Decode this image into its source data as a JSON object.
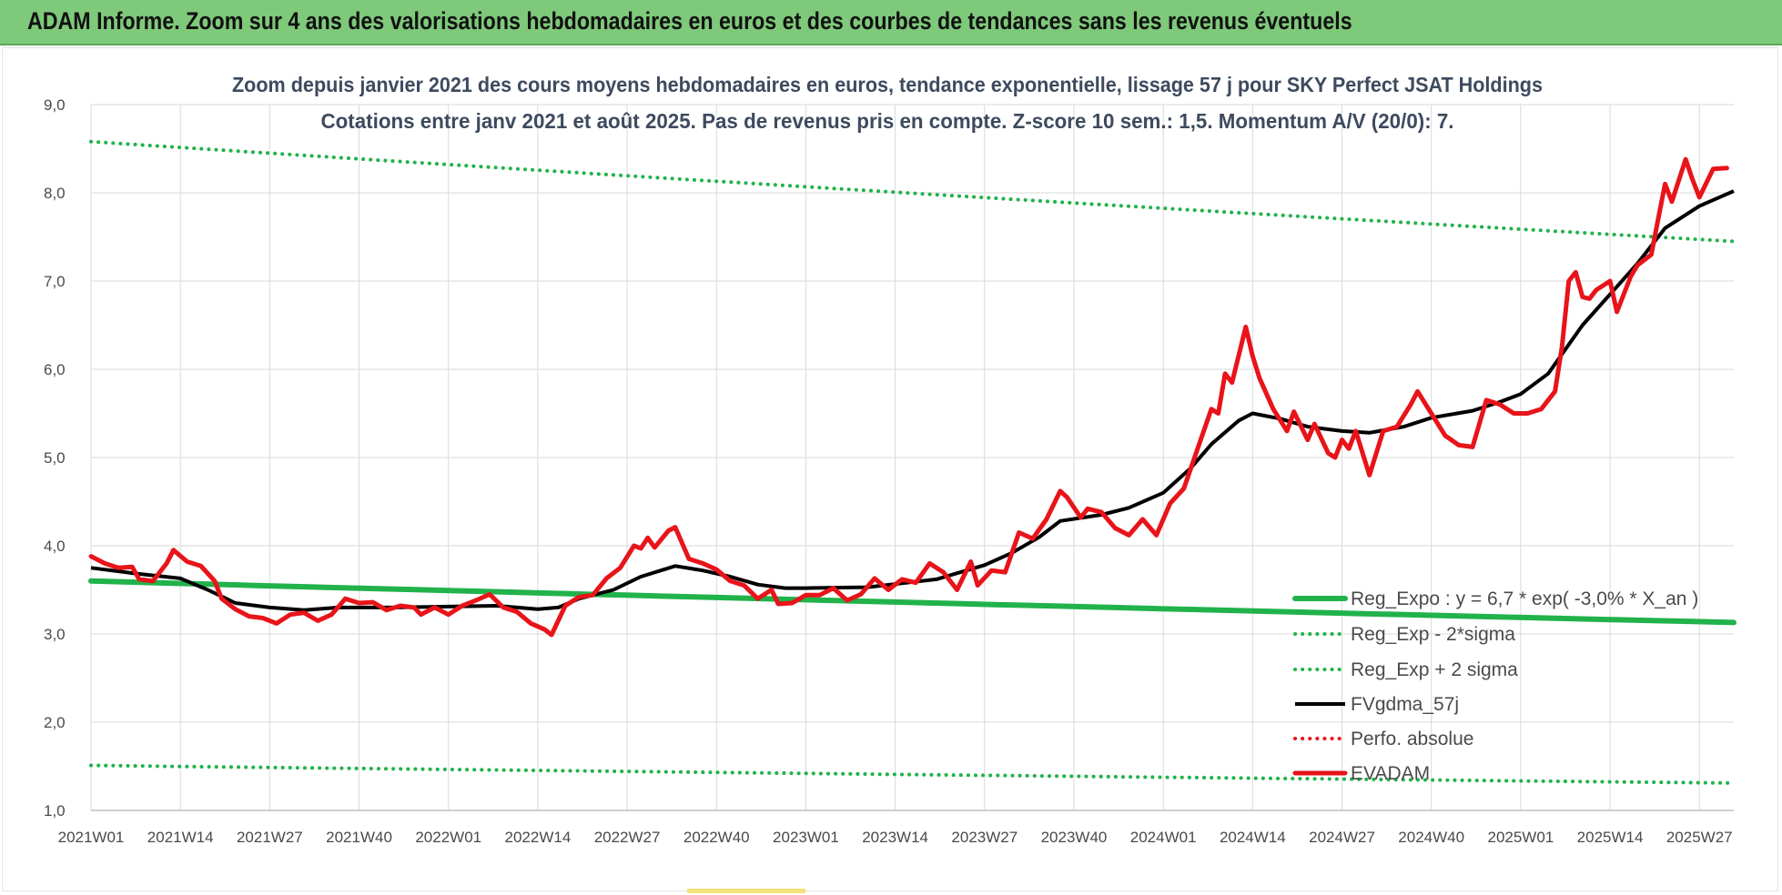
{
  "header": {
    "title": "ADAM Informe. Zoom sur 4 ans des valorisations hebdomadaires en euros et des courbes de tendances sans les revenus éventuels",
    "background": "#7ec97a"
  },
  "chart_data": {
    "type": "line",
    "title_line1": "Zoom depuis janvier 2021 des cours moyens hebdomadaires en euros, tendance exponentielle, lissage 57 j pour SKY Perfect JSAT Holdings",
    "title_line2": "Cotations entre janv 2021 et août 2025.  Pas de revenus pris en compte. Z-score 10 sem.: 1,5. Momentum A/V (20/0): 7.",
    "ylim": [
      1.0,
      9.0
    ],
    "y_ticks": [
      "1,0",
      "2,0",
      "3,0",
      "4,0",
      "5,0",
      "6,0",
      "7,0",
      "8,0",
      "9,0"
    ],
    "x_ticks": [
      "2021W01",
      "2021W14",
      "2021W27",
      "2021W40",
      "2022W01",
      "2022W14",
      "2022W27",
      "2022W40",
      "2023W01",
      "2023W14",
      "2023W27",
      "2023W40",
      "2024W01",
      "2024W14",
      "2024W27",
      "2024W40",
      "2025W01",
      "2025W14",
      "2025W27"
    ],
    "grid": true,
    "legend_position": "bottom-right",
    "series": [
      {
        "name": "Reg_Expo : y = 6,7 * exp( -3,0% *  X_an )",
        "color": "#21b24b",
        "style": "solid-thick",
        "points": [
          [
            "2021W01",
            3.6
          ],
          [
            "2025W32",
            3.13
          ]
        ]
      },
      {
        "name": "Reg_Exp - 2*sigma",
        "color": "#21b24b",
        "style": "dotted",
        "points": [
          [
            "2021W01",
            1.51
          ],
          [
            "2025W32",
            1.31
          ]
        ]
      },
      {
        "name": "Reg_Exp + 2 sigma",
        "color": "#21b24b",
        "style": "dotted",
        "points": [
          [
            "2021W01",
            8.58
          ],
          [
            "2025W32",
            7.45
          ]
        ]
      },
      {
        "name": "FVgdma_57j",
        "color": "#000000",
        "style": "solid",
        "points": [
          [
            "2021W01",
            3.75
          ],
          [
            "2021W08",
            3.68
          ],
          [
            "2021W14",
            3.63
          ],
          [
            "2021W18",
            3.5
          ],
          [
            "2021W22",
            3.35
          ],
          [
            "2021W27",
            3.3
          ],
          [
            "2021W32",
            3.27
          ],
          [
            "2021W37",
            3.3
          ],
          [
            "2021W45",
            3.3
          ],
          [
            "2022W01",
            3.31
          ],
          [
            "2022W08",
            3.32
          ],
          [
            "2022W14",
            3.28
          ],
          [
            "2022W17",
            3.3
          ],
          [
            "2022W20",
            3.4
          ],
          [
            "2022W25",
            3.5
          ],
          [
            "2022W29",
            3.65
          ],
          [
            "2022W34",
            3.77
          ],
          [
            "2022W38",
            3.72
          ],
          [
            "2022W42",
            3.65
          ],
          [
            "2022W46",
            3.56
          ],
          [
            "2022W50",
            3.52
          ],
          [
            "2023W01",
            3.52
          ],
          [
            "2023W10",
            3.53
          ],
          [
            "2023W20",
            3.62
          ],
          [
            "2023W27",
            3.78
          ],
          [
            "2023W31",
            3.92
          ],
          [
            "2023W35",
            4.1
          ],
          [
            "2023W38",
            4.28
          ],
          [
            "2023W44",
            4.35
          ],
          [
            "2023W48",
            4.43
          ],
          [
            "2024W01",
            4.6
          ],
          [
            "2024W05",
            4.88
          ],
          [
            "2024W08",
            5.15
          ],
          [
            "2024W12",
            5.42
          ],
          [
            "2024W14",
            5.5
          ],
          [
            "2024W18",
            5.44
          ],
          [
            "2024W22",
            5.35
          ],
          [
            "2024W27",
            5.3
          ],
          [
            "2024W31",
            5.28
          ],
          [
            "2024W36",
            5.35
          ],
          [
            "2024W40",
            5.45
          ],
          [
            "2024W46",
            5.53
          ],
          [
            "2024W50",
            5.63
          ],
          [
            "2025W01",
            5.72
          ],
          [
            "2025W05",
            5.95
          ],
          [
            "2025W10",
            6.5
          ],
          [
            "2025W14",
            6.85
          ],
          [
            "2025W18",
            7.2
          ],
          [
            "2025W22",
            7.6
          ],
          [
            "2025W27",
            7.85
          ],
          [
            "2025W32",
            8.02
          ]
        ]
      },
      {
        "name": "Perfo. absolue",
        "color": "#e8141a",
        "style": "dotted",
        "points": []
      },
      {
        "name": "EVADAM",
        "color": "#e8141a",
        "style": "solid-thick",
        "points": [
          [
            "2021W01",
            3.88
          ],
          [
            "2021W03",
            3.8
          ],
          [
            "2021W05",
            3.75
          ],
          [
            "2021W07",
            3.76
          ],
          [
            "2021W08",
            3.62
          ],
          [
            "2021W10",
            3.6
          ],
          [
            "2021W12",
            3.8
          ],
          [
            "2021W13",
            3.95
          ],
          [
            "2021W15",
            3.82
          ],
          [
            "2021W17",
            3.77
          ],
          [
            "2021W19",
            3.6
          ],
          [
            "2021W20",
            3.4
          ],
          [
            "2021W22",
            3.28
          ],
          [
            "2021W24",
            3.2
          ],
          [
            "2021W26",
            3.18
          ],
          [
            "2021W28",
            3.12
          ],
          [
            "2021W30",
            3.22
          ],
          [
            "2021W32",
            3.24
          ],
          [
            "2021W34",
            3.15
          ],
          [
            "2021W36",
            3.22
          ],
          [
            "2021W38",
            3.4
          ],
          [
            "2021W40",
            3.35
          ],
          [
            "2021W42",
            3.36
          ],
          [
            "2021W44",
            3.27
          ],
          [
            "2021W46",
            3.32
          ],
          [
            "2021W48",
            3.3
          ],
          [
            "2021W49",
            3.22
          ],
          [
            "2021W51",
            3.3
          ],
          [
            "2022W01",
            3.22
          ],
          [
            "2022W03",
            3.32
          ],
          [
            "2022W05",
            3.38
          ],
          [
            "2022W07",
            3.45
          ],
          [
            "2022W09",
            3.3
          ],
          [
            "2022W11",
            3.25
          ],
          [
            "2022W13",
            3.12
          ],
          [
            "2022W15",
            3.05
          ],
          [
            "2022W16",
            2.99
          ],
          [
            "2022W18",
            3.32
          ],
          [
            "2022W20",
            3.42
          ],
          [
            "2022W22",
            3.44
          ],
          [
            "2022W24",
            3.63
          ],
          [
            "2022W26",
            3.75
          ],
          [
            "2022W28",
            4.0
          ],
          [
            "2022W29",
            3.97
          ],
          [
            "2022W30",
            4.09
          ],
          [
            "2022W31",
            3.98
          ],
          [
            "2022W33",
            4.17
          ],
          [
            "2022W34",
            4.21
          ],
          [
            "2022W36",
            3.85
          ],
          [
            "2022W38",
            3.8
          ],
          [
            "2022W40",
            3.73
          ],
          [
            "2022W42",
            3.6
          ],
          [
            "2022W44",
            3.55
          ],
          [
            "2022W46",
            3.4
          ],
          [
            "2022W48",
            3.5
          ],
          [
            "2022W49",
            3.34
          ],
          [
            "2022W51",
            3.35
          ],
          [
            "2023W01",
            3.44
          ],
          [
            "2023W03",
            3.44
          ],
          [
            "2023W05",
            3.52
          ],
          [
            "2023W07",
            3.38
          ],
          [
            "2023W09",
            3.45
          ],
          [
            "2023W11",
            3.63
          ],
          [
            "2023W13",
            3.5
          ],
          [
            "2023W15",
            3.62
          ],
          [
            "2023W17",
            3.58
          ],
          [
            "2023W19",
            3.8
          ],
          [
            "2023W21",
            3.7
          ],
          [
            "2023W23",
            3.5
          ],
          [
            "2023W25",
            3.82
          ],
          [
            "2023W26",
            3.55
          ],
          [
            "2023W28",
            3.72
          ],
          [
            "2023W30",
            3.7
          ],
          [
            "2023W32",
            4.15
          ],
          [
            "2023W34",
            4.08
          ],
          [
            "2023W36",
            4.3
          ],
          [
            "2023W38",
            4.62
          ],
          [
            "2023W39",
            4.55
          ],
          [
            "2023W41",
            4.32
          ],
          [
            "2023W42",
            4.42
          ],
          [
            "2023W44",
            4.38
          ],
          [
            "2023W46",
            4.2
          ],
          [
            "2023W48",
            4.12
          ],
          [
            "2023W50",
            4.3
          ],
          [
            "2023W52",
            4.12
          ],
          [
            "2024W02",
            4.48
          ],
          [
            "2024W04",
            4.65
          ],
          [
            "2024W06",
            5.1
          ],
          [
            "2024W08",
            5.55
          ],
          [
            "2024W09",
            5.5
          ],
          [
            "2024W10",
            5.95
          ],
          [
            "2024W11",
            5.85
          ],
          [
            "2024W13",
            6.48
          ],
          [
            "2024W14",
            6.15
          ],
          [
            "2024W15",
            5.9
          ],
          [
            "2024W17",
            5.55
          ],
          [
            "2024W19",
            5.3
          ],
          [
            "2024W20",
            5.52
          ],
          [
            "2024W22",
            5.2
          ],
          [
            "2024W23",
            5.38
          ],
          [
            "2024W25",
            5.05
          ],
          [
            "2024W26",
            5.0
          ],
          [
            "2024W27",
            5.2
          ],
          [
            "2024W28",
            5.1
          ],
          [
            "2024W29",
            5.3
          ],
          [
            "2024W31",
            4.8
          ],
          [
            "2024W33",
            5.3
          ],
          [
            "2024W35",
            5.35
          ],
          [
            "2024W37",
            5.6
          ],
          [
            "2024W38",
            5.75
          ],
          [
            "2024W40",
            5.5
          ],
          [
            "2024W42",
            5.25
          ],
          [
            "2024W44",
            5.14
          ],
          [
            "2024W46",
            5.12
          ],
          [
            "2024W48",
            5.65
          ],
          [
            "2024W50",
            5.6
          ],
          [
            "2024W52",
            5.5
          ],
          [
            "2025W02",
            5.5
          ],
          [
            "2025W04",
            5.55
          ],
          [
            "2025W06",
            5.75
          ],
          [
            "2025W07",
            6.25
          ],
          [
            "2025W08",
            7.0
          ],
          [
            "2025W09",
            7.1
          ],
          [
            "2025W10",
            6.82
          ],
          [
            "2025W11",
            6.8
          ],
          [
            "2025W12",
            6.9
          ],
          [
            "2025W14",
            7.0
          ],
          [
            "2025W15",
            6.65
          ],
          [
            "2025W17",
            7.05
          ],
          [
            "2025W18",
            7.18
          ],
          [
            "2025W20",
            7.3
          ],
          [
            "2025W21",
            7.7
          ],
          [
            "2025W22",
            8.1
          ],
          [
            "2025W23",
            7.9
          ],
          [
            "2025W25",
            8.38
          ],
          [
            "2025W26",
            8.15
          ],
          [
            "2025W27",
            7.95
          ],
          [
            "2025W29",
            8.27
          ],
          [
            "2025W31",
            8.28
          ]
        ]
      }
    ]
  }
}
